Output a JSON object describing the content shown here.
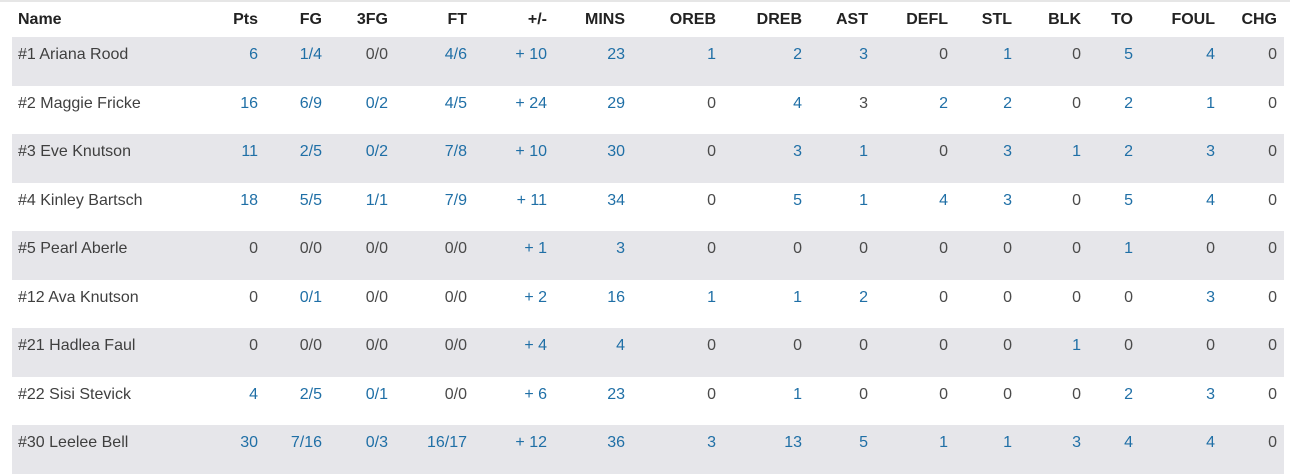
{
  "colors": {
    "link": "#1f6fa6",
    "text": "#4a4a4a",
    "header": "#222222",
    "stripe": "#e6e6ea"
  },
  "columns": [
    "Name",
    "Pts",
    "FG",
    "3FG",
    "FT",
    "+/-",
    "MINS",
    "OREB",
    "DREB",
    "AST",
    "DEFL",
    "STL",
    "BLK",
    "TO",
    "FOUL",
    "CHG"
  ],
  "rows": [
    {
      "name": "#1 Ariana Rood",
      "cells": [
        "6",
        "1/4",
        "0/0",
        "4/6",
        "+ 10",
        "23",
        "1",
        "2",
        "3",
        "0",
        "1",
        "0",
        "5",
        "4",
        "0"
      ],
      "links": [
        true,
        true,
        false,
        true,
        true,
        true,
        true,
        true,
        true,
        false,
        true,
        false,
        true,
        true,
        false
      ]
    },
    {
      "name": "#2 Maggie Fricke",
      "cells": [
        "16",
        "6/9",
        "0/2",
        "4/5",
        "+ 24",
        "29",
        "0",
        "4",
        "3",
        "2",
        "2",
        "0",
        "2",
        "1",
        "0"
      ],
      "links": [
        true,
        true,
        true,
        true,
        true,
        true,
        false,
        true,
        false,
        true,
        true,
        false,
        true,
        true,
        false
      ]
    },
    {
      "name": "#3 Eve Knutson",
      "cells": [
        "11",
        "2/5",
        "0/2",
        "7/8",
        "+ 10",
        "30",
        "0",
        "3",
        "1",
        "0",
        "3",
        "1",
        "2",
        "3",
        "0"
      ],
      "links": [
        true,
        true,
        true,
        true,
        true,
        true,
        false,
        true,
        true,
        false,
        true,
        true,
        true,
        true,
        false
      ]
    },
    {
      "name": "#4 Kinley Bartsch",
      "cells": [
        "18",
        "5/5",
        "1/1",
        "7/9",
        "+ 11",
        "34",
        "0",
        "5",
        "1",
        "4",
        "3",
        "0",
        "5",
        "4",
        "0"
      ],
      "links": [
        true,
        true,
        true,
        true,
        true,
        true,
        false,
        true,
        true,
        true,
        true,
        false,
        true,
        true,
        false
      ]
    },
    {
      "name": "#5 Pearl Aberle",
      "cells": [
        "0",
        "0/0",
        "0/0",
        "0/0",
        "+ 1",
        "3",
        "0",
        "0",
        "0",
        "0",
        "0",
        "0",
        "1",
        "0",
        "0"
      ],
      "links": [
        false,
        false,
        false,
        false,
        true,
        true,
        false,
        false,
        false,
        false,
        false,
        false,
        true,
        false,
        false
      ]
    },
    {
      "name": "#12 Ava Knutson",
      "cells": [
        "0",
        "0/1",
        "0/0",
        "0/0",
        "+ 2",
        "16",
        "1",
        "1",
        "2",
        "0",
        "0",
        "0",
        "0",
        "3",
        "0"
      ],
      "links": [
        false,
        true,
        false,
        false,
        true,
        true,
        true,
        true,
        true,
        false,
        false,
        false,
        false,
        true,
        false
      ]
    },
    {
      "name": "#21 Hadlea Faul",
      "cells": [
        "0",
        "0/0",
        "0/0",
        "0/0",
        "+ 4",
        "4",
        "0",
        "0",
        "0",
        "0",
        "0",
        "1",
        "0",
        "0",
        "0"
      ],
      "links": [
        false,
        false,
        false,
        false,
        true,
        true,
        false,
        false,
        false,
        false,
        false,
        true,
        false,
        false,
        false
      ]
    },
    {
      "name": "#22 Sisi Stevick",
      "cells": [
        "4",
        "2/5",
        "0/1",
        "0/0",
        "+ 6",
        "23",
        "0",
        "1",
        "0",
        "0",
        "0",
        "0",
        "2",
        "3",
        "0"
      ],
      "links": [
        true,
        true,
        true,
        false,
        true,
        true,
        false,
        true,
        false,
        false,
        false,
        false,
        true,
        true,
        false
      ]
    },
    {
      "name": "#30 Leelee Bell",
      "cells": [
        "30",
        "7/16",
        "0/3",
        "16/17",
        "+ 12",
        "36",
        "3",
        "13",
        "5",
        "1",
        "1",
        "3",
        "4",
        "4",
        "0"
      ],
      "links": [
        true,
        true,
        true,
        true,
        true,
        true,
        true,
        true,
        true,
        true,
        true,
        true,
        true,
        true,
        false
      ]
    }
  ]
}
